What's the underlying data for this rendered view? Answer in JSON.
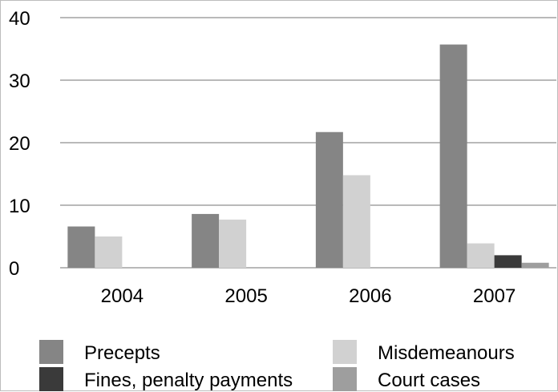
{
  "chart_data": {
    "type": "bar",
    "categories": [
      "2004",
      "2005",
      "2006",
      "2007"
    ],
    "series": [
      {
        "name": "Precepts",
        "values": [
          6.6,
          8.6,
          21.7,
          35.7
        ],
        "color": "#858585"
      },
      {
        "name": "Misdemeanours",
        "values": [
          5.0,
          7.7,
          14.8,
          3.9
        ],
        "color": "#d1d1d1"
      },
      {
        "name": "Fines, penalty payments",
        "values": [
          0,
          0,
          0,
          2.0
        ],
        "color": "#3a3a3a"
      },
      {
        "name": "Court cases",
        "values": [
          0,
          0,
          0,
          0.8
        ],
        "color": "#9e9e9e"
      }
    ],
    "y_ticks": [
      "0",
      "10",
      "20",
      "30",
      "40"
    ],
    "ylim": [
      0,
      40
    ],
    "grid": true,
    "legend_position": "bottom",
    "title": "",
    "xlabel": "",
    "ylabel": ""
  }
}
